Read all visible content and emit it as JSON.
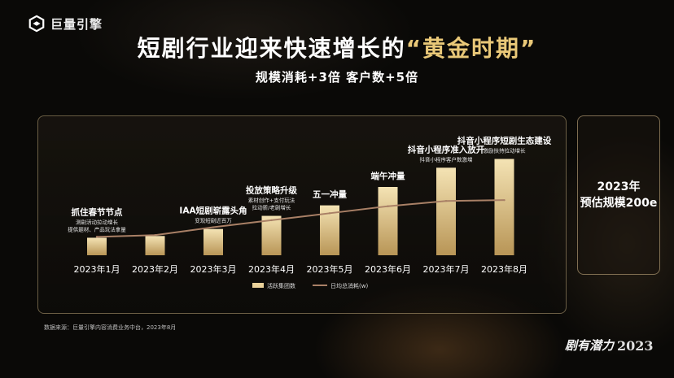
{
  "brand": {
    "logo_text": "巨量引擎"
  },
  "header": {
    "title_main": "短剧行业迎来快速增长的",
    "title_highlight": "“黄金时期”",
    "subtitle": "规模消耗+3倍  客户数+5倍"
  },
  "side_box": {
    "line1": "2023年",
    "line2": "预估规模200e"
  },
  "footer": {
    "source": "数据来源：巨量引擎内容消费业务中台，2023年8月",
    "slogan": "剧有潜力",
    "year": "2023"
  },
  "colors": {
    "bar": "#ead29a",
    "line": "#a98066",
    "accent": "#e9c878"
  },
  "chart_data": {
    "type": "bar",
    "categories": [
      "2023年1月",
      "2023年2月",
      "2023年3月",
      "2023年4月",
      "2023年5月",
      "2023年6月",
      "2023年7月",
      "2023年8月"
    ],
    "ylim": [
      0,
      130
    ],
    "series": [
      {
        "name": "活跃集团数",
        "type": "bar",
        "values": [
          20,
          22,
          30,
          45,
          57,
          78,
          100,
          110
        ]
      },
      {
        "name": "日均总消耗(w)",
        "type": "line",
        "values": [
          21,
          23,
          32,
          40,
          48,
          56,
          62,
          63
        ]
      }
    ],
    "legend_position": "bottom",
    "annotations": [
      {
        "category": "2023年1月",
        "title": "抓住春节节点",
        "lines": [
          "测剧活动拉动增长",
          "提供题材、产品玩法拿量"
        ]
      },
      {
        "category": "2023年3月",
        "title": "IAA短剧崭露头角",
        "lines": [
          "变现短剧近百万"
        ]
      },
      {
        "category": "2023年4月",
        "title": "投放策略升级",
        "lines": [
          "素材创作+支付玩法",
          "拉动新/老剧增长"
        ]
      },
      {
        "category": "2023年5月",
        "title": "五一冲量",
        "lines": []
      },
      {
        "category": "2023年6月",
        "title": "端午冲量",
        "lines": []
      },
      {
        "category": "2023年7月",
        "title": "抖音小程序准入放开",
        "lines": [
          "抖音小程序客户数激增"
        ]
      },
      {
        "category": "2023年8月",
        "title": "抖音小程序短剧生态建设",
        "lines": [
          "激励扶持拉动增长"
        ]
      }
    ]
  }
}
